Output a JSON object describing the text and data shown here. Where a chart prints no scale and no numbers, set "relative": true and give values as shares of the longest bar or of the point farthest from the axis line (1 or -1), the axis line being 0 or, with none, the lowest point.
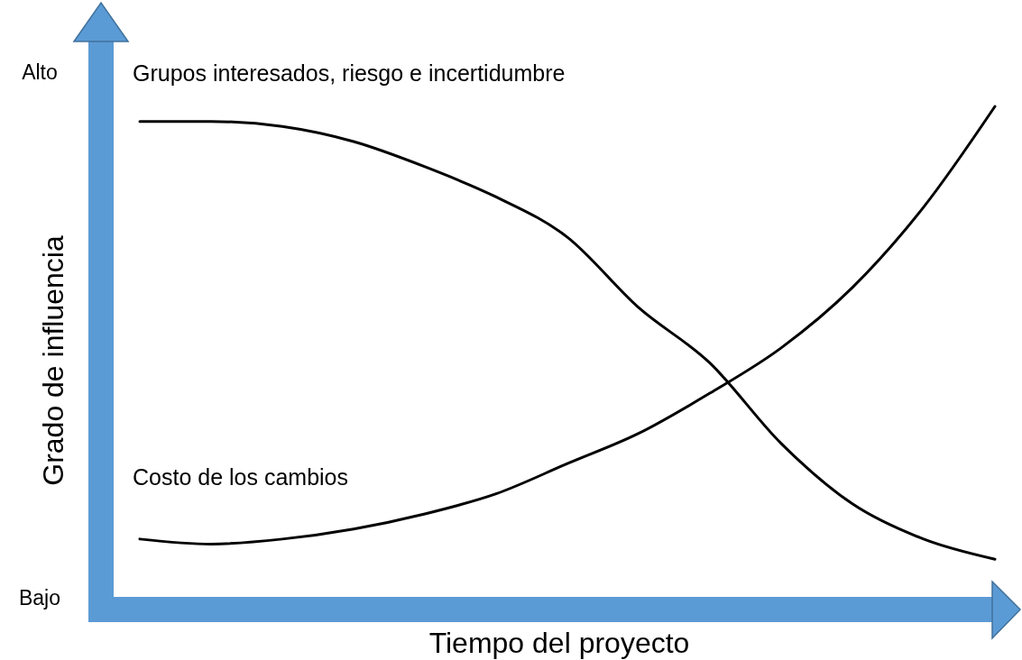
{
  "chart_data": {
    "type": "line",
    "xlabel": "Tiempo del proyecto",
    "ylabel": "Grado de influencia",
    "categories": [
      null,
      null,
      null,
      null,
      null,
      null,
      null,
      null,
      null,
      null,
      null,
      null,
      null
    ],
    "relative": true,
    "annotations": [
      "Alto",
      "Bajo"
    ],
    "marker": "none",
    "line_style": "solid",
    "series": [
      {
        "name": "Grupos interesados, riesgo e incertidumbre",
        "color": "#000000",
        "values": [
          0.97,
          0.97,
          0.96,
          0.93,
          0.88,
          0.82,
          0.74,
          0.6,
          0.49,
          0.33,
          0.21,
          0.14,
          0.1
        ]
      },
      {
        "name": "Costo de los cambios",
        "color": "#000000",
        "values": [
          0.14,
          0.13,
          0.14,
          0.16,
          0.19,
          0.23,
          0.29,
          0.35,
          0.43,
          0.52,
          0.64,
          0.8,
          1
        ]
      }
    ]
  }
}
